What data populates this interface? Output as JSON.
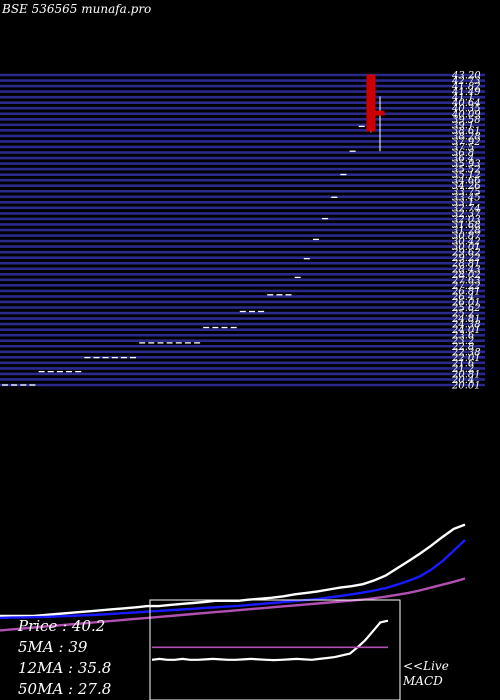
{
  "header": {
    "symbol_label": "BSE 536565 munafa.pro"
  },
  "panel_price": {
    "grid_color": "#2a2a8c",
    "level_labels": [
      "43.20",
      "42.73",
      "41.82",
      "41.49",
      "41.1",
      "40.64",
      "40.35",
      "40.09",
      "39.58",
      "39.1",
      "38.61",
      "38.28",
      "37.92",
      "37.5",
      "36.8",
      "36.4",
      "35.93",
      "35.52",
      "35.12",
      "34.66",
      "34.26",
      "33.75",
      "33.45",
      "33.1",
      "32.74",
      "32.37",
      "32.03",
      "31.68",
      "31.28",
      "30.87",
      "30.42",
      "30.01",
      "29.62",
      "29.22",
      "28.81",
      "28.43",
      "28.02",
      "27.63",
      "27.22",
      "26.81",
      "26.4",
      "26.01",
      "25.62",
      "25.2",
      "24.81",
      "24.38",
      "24.01",
      "23.6",
      "23.2",
      "22.8",
      "22.38",
      "22.01",
      "21.6",
      "21.2",
      "20.81",
      "20.4",
      "20.01"
    ]
  },
  "panel_ma": {
    "price_label": "Price  : 40.2",
    "ma5_label": "5MA : 39",
    "ma12_label": "12MA : 35.8",
    "ma50_label": "50MA : 27.8"
  },
  "panel_macd": {
    "live_label": "<<Live",
    "macd_label": "MACD"
  },
  "colors": {
    "background": "#000000",
    "bull_candle": "#ffffff",
    "bear_candle": "#cc0000",
    "ma5": "#ffffff",
    "ma12": "#1a1aff",
    "ma50": "#b050b0",
    "macd_signal": "#b050b0",
    "panel_border": "#ffffff"
  },
  "chart_data": [
    {
      "type": "candlestick",
      "title": "BSE 536565 munafa.pro",
      "ylim": [
        20.0,
        43.2
      ],
      "candles": [
        {
          "o": 20.0,
          "h": 20.0,
          "l": 20.0,
          "c": 20.0
        },
        {
          "o": 20.0,
          "h": 20.0,
          "l": 20.0,
          "c": 20.0
        },
        {
          "o": 20.0,
          "h": 20.0,
          "l": 20.0,
          "c": 20.0
        },
        {
          "o": 20.0,
          "h": 20.0,
          "l": 20.0,
          "c": 20.0
        },
        {
          "o": 21.0,
          "h": 21.0,
          "l": 21.0,
          "c": 21.0
        },
        {
          "o": 21.0,
          "h": 21.0,
          "l": 21.0,
          "c": 21.0
        },
        {
          "o": 21.0,
          "h": 21.0,
          "l": 21.0,
          "c": 21.0
        },
        {
          "o": 21.0,
          "h": 21.0,
          "l": 21.0,
          "c": 21.0
        },
        {
          "o": 21.0,
          "h": 21.0,
          "l": 21.0,
          "c": 21.0
        },
        {
          "o": 22.05,
          "h": 22.05,
          "l": 22.05,
          "c": 22.05
        },
        {
          "o": 22.05,
          "h": 22.05,
          "l": 22.05,
          "c": 22.05
        },
        {
          "o": 22.05,
          "h": 22.05,
          "l": 22.05,
          "c": 22.05
        },
        {
          "o": 22.05,
          "h": 22.05,
          "l": 22.05,
          "c": 22.05
        },
        {
          "o": 22.05,
          "h": 22.05,
          "l": 22.05,
          "c": 22.05
        },
        {
          "o": 22.05,
          "h": 22.05,
          "l": 22.05,
          "c": 22.05
        },
        {
          "o": 23.15,
          "h": 23.15,
          "l": 23.15,
          "c": 23.15
        },
        {
          "o": 23.15,
          "h": 23.15,
          "l": 23.15,
          "c": 23.15
        },
        {
          "o": 23.15,
          "h": 23.15,
          "l": 23.15,
          "c": 23.15
        },
        {
          "o": 23.15,
          "h": 23.15,
          "l": 23.15,
          "c": 23.15
        },
        {
          "o": 23.15,
          "h": 23.15,
          "l": 23.15,
          "c": 23.15
        },
        {
          "o": 23.15,
          "h": 23.15,
          "l": 23.15,
          "c": 23.15
        },
        {
          "o": 23.15,
          "h": 23.15,
          "l": 23.15,
          "c": 23.15
        },
        {
          "o": 24.3,
          "h": 24.3,
          "l": 24.3,
          "c": 24.3
        },
        {
          "o": 24.3,
          "h": 24.3,
          "l": 24.3,
          "c": 24.3
        },
        {
          "o": 24.3,
          "h": 24.3,
          "l": 24.3,
          "c": 24.3
        },
        {
          "o": 24.3,
          "h": 24.3,
          "l": 24.3,
          "c": 24.3
        },
        {
          "o": 25.5,
          "h": 25.5,
          "l": 25.5,
          "c": 25.5
        },
        {
          "o": 25.5,
          "h": 25.5,
          "l": 25.5,
          "c": 25.5
        },
        {
          "o": 25.5,
          "h": 25.5,
          "l": 25.5,
          "c": 25.5
        },
        {
          "o": 26.75,
          "h": 26.75,
          "l": 26.75,
          "c": 26.75
        },
        {
          "o": 26.75,
          "h": 26.75,
          "l": 26.75,
          "c": 26.75
        },
        {
          "o": 26.75,
          "h": 26.75,
          "l": 26.75,
          "c": 26.75
        },
        {
          "o": 28.05,
          "h": 28.05,
          "l": 28.05,
          "c": 28.05
        },
        {
          "o": 29.45,
          "h": 29.45,
          "l": 29.45,
          "c": 29.45
        },
        {
          "o": 30.9,
          "h": 30.9,
          "l": 30.9,
          "c": 30.9
        },
        {
          "o": 32.45,
          "h": 32.45,
          "l": 32.45,
          "c": 32.45
        },
        {
          "o": 34.05,
          "h": 34.05,
          "l": 34.05,
          "c": 34.05
        },
        {
          "o": 35.75,
          "h": 35.75,
          "l": 35.75,
          "c": 35.75
        },
        {
          "o": 37.5,
          "h": 37.5,
          "l": 37.5,
          "c": 37.5
        },
        {
          "o": 39.35,
          "h": 39.35,
          "l": 39.35,
          "c": 39.35
        },
        {
          "o": 43.2,
          "h": 43.2,
          "l": 38.9,
          "c": 39.0
        },
        {
          "o": 40.5,
          "h": 41.6,
          "l": 37.5,
          "c": 40.2
        }
      ]
    },
    {
      "type": "line",
      "series": [
        {
          "name": "5MA",
          "values": [
            20.0,
            20.0,
            20.0,
            20.0,
            20.2,
            20.4,
            20.6,
            20.8,
            21.0,
            21.2,
            21.4,
            21.6,
            21.8,
            22.05,
            22.05,
            22.3,
            22.5,
            22.7,
            22.9,
            23.15,
            23.15,
            23.15,
            23.4,
            23.6,
            23.8,
            24.1,
            24.5,
            24.8,
            25.1,
            25.5,
            25.9,
            26.2,
            26.6,
            27.4,
            28.4,
            29.9,
            31.4,
            32.9,
            34.6,
            36.4,
            38.1,
            39.0
          ]
        },
        {
          "name": "12MA",
          "values": [
            19.6,
            19.65,
            19.7,
            19.75,
            19.8,
            19.9,
            20.0,
            20.1,
            20.2,
            20.3,
            20.45,
            20.6,
            20.75,
            20.9,
            21.05,
            21.2,
            21.35,
            21.5,
            21.65,
            21.8,
            21.95,
            22.1,
            22.3,
            22.5,
            22.7,
            22.9,
            23.1,
            23.3,
            23.55,
            23.85,
            24.15,
            24.5,
            24.85,
            25.3,
            25.8,
            26.5,
            27.3,
            28.2,
            29.6,
            31.4,
            33.6,
            35.8
          ]
        },
        {
          "name": "50MA",
          "values": [
            17.0,
            17.2,
            17.4,
            17.6,
            17.8,
            18.0,
            18.2,
            18.4,
            18.6,
            18.8,
            19.0,
            19.2,
            19.4,
            19.6,
            19.8,
            20.0,
            20.2,
            20.4,
            20.6,
            20.8,
            21.0,
            21.2,
            21.4,
            21.6,
            21.8,
            22.0,
            22.2,
            22.4,
            22.6,
            22.8,
            23.0,
            23.2,
            23.4,
            23.7,
            24.0,
            24.4,
            24.8,
            25.3,
            25.9,
            26.5,
            27.1,
            27.8
          ]
        }
      ]
    },
    {
      "type": "line",
      "series": [
        {
          "name": "MACD",
          "values": [
            0.2,
            0.25,
            0.2,
            0.2,
            0.25,
            0.2,
            0.2,
            0.22,
            0.25,
            0.22,
            0.2,
            0.2,
            0.22,
            0.25,
            0.22,
            0.2,
            0.18,
            0.2,
            0.22,
            0.25,
            0.22,
            0.2,
            0.25,
            0.3,
            0.35,
            0.45,
            0.55,
            0.9,
            1.3,
            1.8,
            2.3,
            2.4
          ]
        },
        {
          "name": "Signal",
          "values": [
            0.9,
            0.9,
            0.9,
            0.9,
            0.9,
            0.9,
            0.9,
            0.9,
            0.9,
            0.9,
            0.9,
            0.9,
            0.9,
            0.9,
            0.9,
            0.9,
            0.9,
            0.9,
            0.9,
            0.9,
            0.9,
            0.9,
            0.9,
            0.9,
            0.9,
            0.9,
            0.9,
            0.9,
            0.9,
            0.9,
            0.9,
            0.9
          ]
        }
      ]
    }
  ]
}
